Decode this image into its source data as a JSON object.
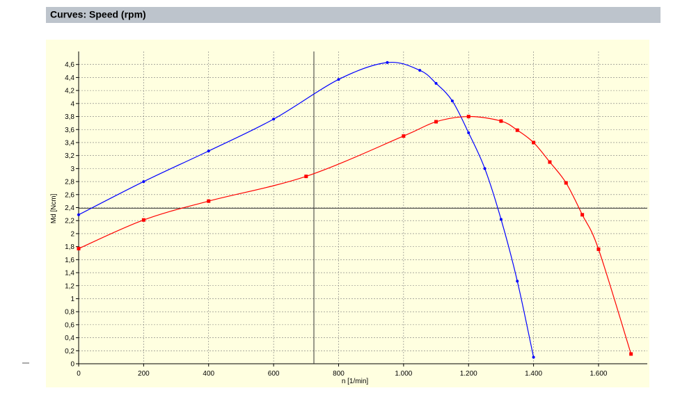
{
  "header": {
    "title": "Curves: Speed (rpm)"
  },
  "chart_data": {
    "type": "line",
    "x_label": "n [1/min]",
    "y_label": "Md [Ncm]",
    "xlim": [
      0,
      1750
    ],
    "ylim": [
      0,
      4.8
    ],
    "xticks": [
      0,
      200,
      400,
      600,
      800,
      {
        "value": 1000,
        "label": "1.000"
      },
      {
        "value": 1200,
        "label": "1.200"
      },
      {
        "value": 1400,
        "label": "1.400"
      },
      {
        "value": 1600,
        "label": "1.600"
      }
    ],
    "yticks": [
      0,
      {
        "value": 0.2,
        "label": "0,2"
      },
      {
        "value": 0.4,
        "label": "0,4"
      },
      {
        "value": 0.6,
        "label": "0,6"
      },
      {
        "value": 0.8,
        "label": "0,8"
      },
      1,
      {
        "value": 1.2,
        "label": "1,2"
      },
      {
        "value": 1.4,
        "label": "1,4"
      },
      {
        "value": 1.6,
        "label": "1,6"
      },
      {
        "value": 1.8,
        "label": "1,8"
      },
      2,
      {
        "value": 2.2,
        "label": "2,2"
      },
      {
        "value": 2.4,
        "label": "2,4"
      },
      {
        "value": 2.6,
        "label": "2,6"
      },
      {
        "value": 2.8,
        "label": "2,8"
      },
      3,
      {
        "value": 3.2,
        "label": "3,2"
      },
      {
        "value": 3.4,
        "label": "3,4"
      },
      {
        "value": 3.6,
        "label": "3,6"
      },
      {
        "value": 3.8,
        "label": "3,8"
      },
      4,
      {
        "value": 4.2,
        "label": "4,2"
      },
      {
        "value": 4.4,
        "label": "4,4"
      },
      {
        "value": 4.6,
        "label": "4,6"
      }
    ],
    "grid": true,
    "crosshair": [
      724,
      2.39
    ],
    "series": [
      {
        "color": "#0000ff",
        "marker": "dot",
        "x": [
          0,
          200,
          400,
          600,
          800,
          950,
          1050,
          1100,
          1150,
          1200,
          1250,
          1300,
          1350,
          1400
        ],
        "values": [
          2.29,
          2.8,
          3.27,
          3.76,
          4.37,
          4.63,
          4.51,
          4.31,
          4.04,
          3.55,
          3.0,
          2.22,
          1.27,
          0.1
        ]
      },
      {
        "color": "#ff0000",
        "marker": "square",
        "x": [
          0,
          200,
          400,
          700,
          1000,
          1100,
          1200,
          1300,
          1350,
          1400,
          1450,
          1500,
          1550,
          1600,
          1700
        ],
        "values": [
          1.77,
          2.21,
          2.5,
          2.88,
          3.5,
          3.72,
          3.8,
          3.73,
          3.59,
          3.4,
          3.1,
          2.78,
          2.29,
          1.76,
          0.15
        ]
      }
    ]
  }
}
